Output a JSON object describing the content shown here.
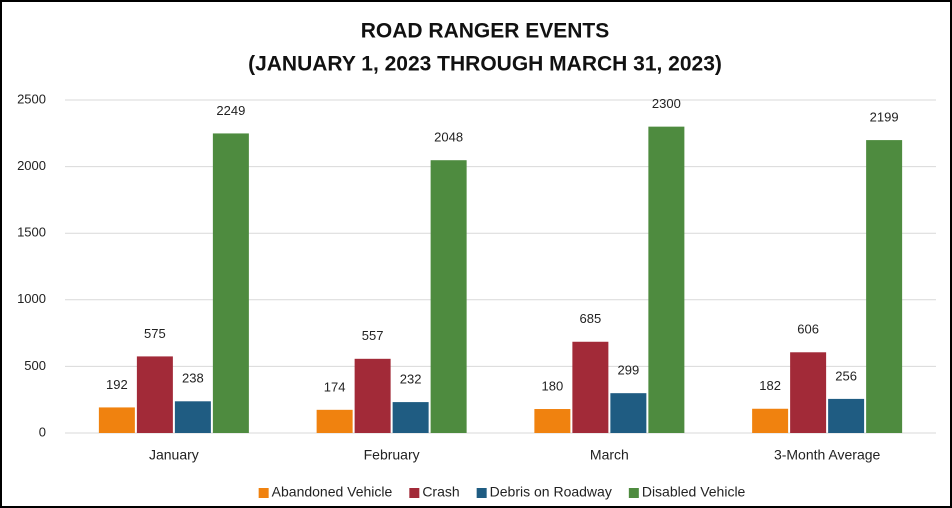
{
  "chart_data": {
    "type": "bar",
    "title": [
      "ROAD RANGER EVENTS",
      "(JANUARY 1, 2023 THROUGH MARCH 31, 2023)"
    ],
    "categories": [
      "January",
      "February",
      "March",
      "3-Month Average"
    ],
    "series": [
      {
        "name": "Abandoned Vehicle",
        "color": "#f0820f",
        "values": [
          192,
          174,
          180,
          182
        ]
      },
      {
        "name": "Crash",
        "color": "#a22a38",
        "values": [
          575,
          557,
          685,
          606
        ]
      },
      {
        "name": "Debris on Roadway",
        "color": "#1f5c82",
        "values": [
          238,
          232,
          299,
          256
        ]
      },
      {
        "name": "Disabled Vehicle",
        "color": "#4e8b3f",
        "values": [
          2249,
          2048,
          2300,
          2199
        ]
      }
    ],
    "ylim": [
      0,
      2500
    ],
    "yticks": [
      0,
      500,
      1000,
      1500,
      2000,
      2500
    ],
    "grid": true,
    "legend": "bottom"
  }
}
